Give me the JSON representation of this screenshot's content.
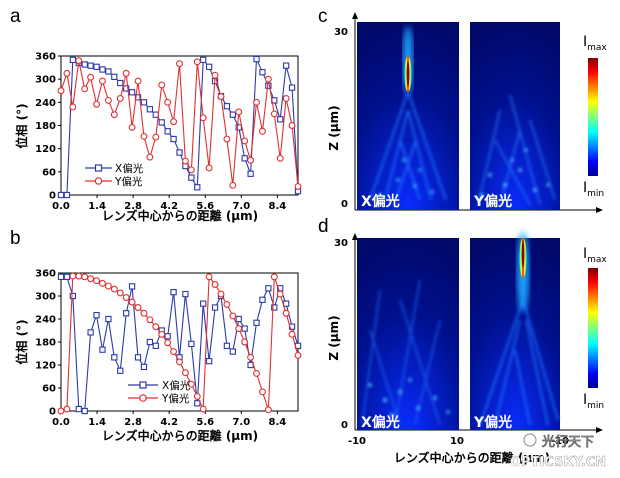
{
  "panel_labels": {
    "a": "a",
    "b": "b",
    "c": "c",
    "d": "d"
  },
  "colors": {
    "x_series": "#2b3aa8",
    "y_series": "#e03030"
  },
  "chart_data": [
    {
      "id": "a",
      "type": "line",
      "xlabel": "レンズ中心からの距離 (μm)",
      "ylabel": "位相 (°)",
      "xlim": [
        0,
        9.2
      ],
      "ylim": [
        0,
        360
      ],
      "x_ticks": [
        "0.0",
        "1.4",
        "2.8",
        "4.2",
        "5.6",
        "7.0",
        "8.4"
      ],
      "y_ticks": [
        "0",
        "60",
        "120",
        "180",
        "240",
        "300",
        "360"
      ],
      "legend_position": "lower-left",
      "series": [
        {
          "name": "X偏光",
          "marker": "square",
          "x": [
            0.0,
            0.23,
            0.46,
            0.69,
            0.92,
            1.15,
            1.38,
            1.61,
            1.84,
            2.07,
            2.3,
            2.53,
            2.76,
            2.99,
            3.22,
            3.45,
            3.68,
            3.91,
            4.14,
            4.37,
            4.6,
            4.83,
            5.06,
            5.29,
            5.52,
            5.75,
            5.98,
            6.21,
            6.44,
            6.67,
            6.9,
            7.13,
            7.36,
            7.59,
            7.82,
            8.05,
            8.28,
            8.51,
            8.74,
            8.97,
            9.2
          ],
          "y": [
            0,
            0,
            350,
            342,
            338,
            335,
            332,
            325,
            320,
            306,
            290,
            276,
            266,
            253,
            240,
            222,
            208,
            188,
            165,
            145,
            110,
            75,
            45,
            20,
            350,
            332,
            295,
            256,
            230,
            208,
            175,
            95,
            55,
            352,
            318,
            283,
            245,
            196,
            335,
            278,
            10
          ]
        },
        {
          "name": "Y偏光",
          "marker": "circle",
          "x": [
            0.0,
            0.23,
            0.46,
            0.69,
            0.92,
            1.15,
            1.38,
            1.61,
            1.84,
            2.07,
            2.3,
            2.53,
            2.76,
            2.99,
            3.22,
            3.45,
            3.68,
            3.91,
            4.14,
            4.37,
            4.6,
            4.83,
            5.06,
            5.29,
            5.52,
            5.75,
            5.98,
            6.21,
            6.44,
            6.67,
            6.9,
            7.13,
            7.36,
            7.59,
            7.82,
            8.05,
            8.28,
            8.51,
            8.74,
            8.97,
            9.2
          ],
          "y": [
            270,
            315,
            228,
            348,
            275,
            305,
            235,
            295,
            245,
            208,
            250,
            315,
            175,
            295,
            152,
            98,
            150,
            285,
            240,
            190,
            340,
            88,
            65,
            345,
            200,
            70,
            310,
            255,
            145,
            25,
            215,
            140,
            90,
            240,
            165,
            300,
            210,
            95,
            250,
            180,
            22
          ]
        }
      ]
    },
    {
      "id": "b",
      "type": "line",
      "xlabel": "レンズ中心からの距離 (μm)",
      "ylabel": "位相 (°)",
      "xlim": [
        0,
        9.2
      ],
      "ylim": [
        0,
        360
      ],
      "x_ticks": [
        "0.0",
        "1.4",
        "2.8",
        "4.2",
        "5.6",
        "7.0",
        "8.4"
      ],
      "y_ticks": [
        "0",
        "60",
        "120",
        "180",
        "240",
        "300",
        "360"
      ],
      "legend_position": "bottom-center",
      "series": [
        {
          "name": "X偏光",
          "marker": "square",
          "x": [
            0.0,
            0.23,
            0.46,
            0.69,
            0.92,
            1.15,
            1.38,
            1.61,
            1.84,
            2.07,
            2.3,
            2.53,
            2.76,
            2.99,
            3.22,
            3.45,
            3.68,
            3.91,
            4.14,
            4.37,
            4.6,
            4.83,
            5.06,
            5.29,
            5.52,
            5.75,
            5.98,
            6.21,
            6.44,
            6.67,
            6.9,
            7.13,
            7.36,
            7.59,
            7.82,
            8.05,
            8.28,
            8.51,
            8.74,
            8.97,
            9.2
          ],
          "y": [
            350,
            350,
            300,
            5,
            0,
            205,
            250,
            160,
            240,
            140,
            105,
            255,
            325,
            140,
            115,
            180,
            170,
            210,
            195,
            310,
            140,
            305,
            175,
            20,
            280,
            130,
            270,
            300,
            170,
            155,
            240,
            215,
            120,
            230,
            290,
            320,
            270,
            320,
            280,
            220,
            170
          ]
        },
        {
          "name": "Y偏光",
          "marker": "circle",
          "x": [
            0.0,
            0.23,
            0.46,
            0.69,
            0.92,
            1.15,
            1.38,
            1.61,
            1.84,
            2.07,
            2.3,
            2.53,
            2.76,
            2.99,
            3.22,
            3.45,
            3.68,
            3.91,
            4.14,
            4.37,
            4.6,
            4.83,
            5.06,
            5.29,
            5.52,
            5.75,
            5.98,
            6.21,
            6.44,
            6.67,
            6.9,
            7.13,
            7.36,
            7.59,
            7.82,
            8.05,
            8.28,
            8.51,
            8.74,
            8.97,
            9.2
          ],
          "y": [
            0,
            5,
            352,
            352,
            350,
            345,
            340,
            333,
            326,
            318,
            308,
            296,
            284,
            270,
            255,
            238,
            220,
            200,
            178,
            155,
            128,
            100,
            70,
            38,
            5,
            350,
            330,
            305,
            278,
            248,
            215,
            180,
            140,
            98,
            50,
            3,
            350,
            305,
            255,
            200,
            145
          ]
        }
      ]
    },
    {
      "id": "c",
      "type": "heatmap",
      "ylabel": "Z (μm)",
      "y_ticks": [
        "0",
        "30"
      ],
      "colorbar": {
        "top": "I",
        "top_sub": "max",
        "bottom": "I",
        "bottom_sub": "min"
      },
      "panels": [
        {
          "label": "X偏光"
        },
        {
          "label": "Y偏光"
        }
      ]
    },
    {
      "id": "d",
      "type": "heatmap",
      "xlabel": "レンズ中心からの距離 (μm)",
      "ylabel": "Z (μm)",
      "y_ticks": [
        "0",
        "30"
      ],
      "x_ticks_left": [
        "-10",
        "10"
      ],
      "x_ticks_right": [
        "-10"
      ],
      "colorbar": {
        "top": "I",
        "top_sub": "max",
        "bottom": "I",
        "bottom_sub": "min"
      },
      "panels": [
        {
          "label": "X偏光"
        },
        {
          "label": "Y偏光"
        }
      ]
    }
  ],
  "watermark": {
    "line1": "光行天下",
    "line2": "OPTICSKY.CN"
  }
}
